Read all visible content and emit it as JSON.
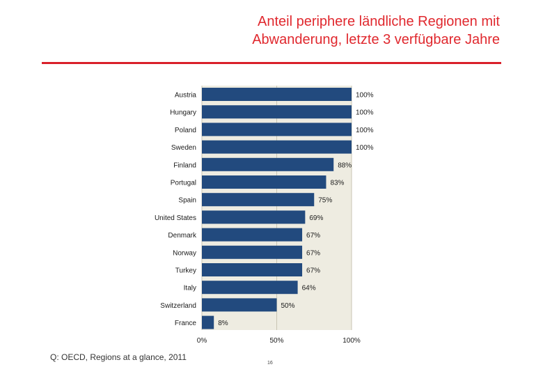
{
  "slide": {
    "title_line1": "Anteil periphere ländliche Regionen mit",
    "title_line2": "Abwanderung, letzte 3 verfügbare Jahre",
    "source": "Q: OECD, Regions at a glance, 2011",
    "page_number": "16"
  },
  "colors": {
    "title": "#e0282e",
    "rule": "#d9202a",
    "bar": "#224a7e",
    "plot_background": "#eeece1"
  },
  "chart_data": {
    "type": "bar",
    "orientation": "horizontal",
    "categories": [
      "Austria",
      "Hungary",
      "Poland",
      "Sweden",
      "Finland",
      "Portugal",
      "Spain",
      "United States",
      "Denmark",
      "Norway",
      "Turkey",
      "Italy",
      "Switzerland",
      "France"
    ],
    "values": [
      100,
      100,
      100,
      100,
      88,
      83,
      75,
      69,
      67,
      67,
      67,
      64,
      50,
      8
    ],
    "value_labels": [
      "100%",
      "100%",
      "100%",
      "100%",
      "88%",
      "83%",
      "75%",
      "69%",
      "67%",
      "67%",
      "67%",
      "64%",
      "50%",
      "8%"
    ],
    "x_ticks": [
      0,
      50,
      100
    ],
    "x_tick_labels": [
      "0%",
      "50%",
      "100%"
    ],
    "xlim": [
      0,
      100
    ],
    "grid": true
  }
}
